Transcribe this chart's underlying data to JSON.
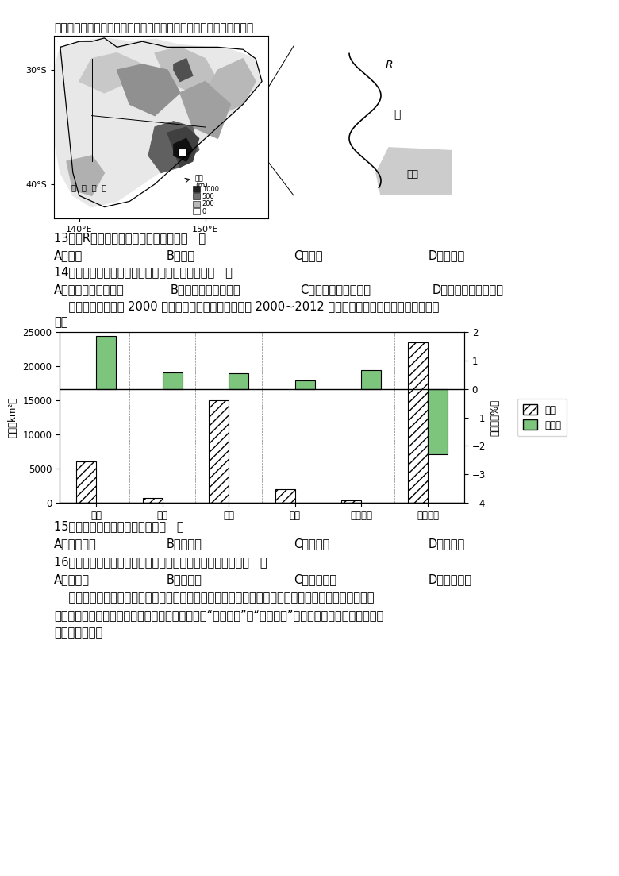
{
  "page_bg": "#ffffff",
  "top_text": "掩映在绿树红花中。图示意澳大利亚部分区域。读图完成下面小题。",
  "q13": "13．与R河终年清澈见底无关的因素是（   ）",
  "q13_options": [
    "A．水温",
    "B．流速",
    "C．盐度",
    "D．含沙量"
  ],
  "q14": "14．游泳爱好者横渡巴斯海峡最佳季节时，正値（   ）",
  "q14_options": [
    "A．我国华北小麦返青",
    "B．长江流域伏旱时期",
    "C．澳大利亚白昂变长",
    "D．巴西高原草木茂盛"
  ],
  "chart_intro": "    下图为我国某区域 2000 年主要土地利用类型的面积及 2000~2012 年的变化率示意图。据图完成下面小",
  "chart_intro2": "题。",
  "categories": [
    "耕地",
    "林地",
    "草地",
    "水域",
    "建设用地",
    "未利用地"
  ],
  "area_values": [
    6000,
    700,
    15000,
    2000,
    300,
    23500
  ],
  "change_values": [
    1.85,
    0.58,
    0.55,
    0.3,
    0.65,
    -2.3
  ],
  "area_ylim": [
    0,
    25000
  ],
  "change_ylim": [
    -4,
    2
  ],
  "area_yticks": [
    0,
    5000,
    10000,
    15000,
    20000,
    25000
  ],
  "change_yticks": [
    -4,
    -3,
    -2,
    -1,
    0,
    1,
    2
  ],
  "area_label": "面积（km²）",
  "change_label": "变化率（%）",
  "area_color": "#d8d8d8",
  "change_color": "#7dc47d",
  "hatch_area": "///",
  "legend_area": "面积",
  "legend_change": "变化率",
  "q15": "15．该区域所在的省份最可能是（   ）",
  "q15_options": [
    "A．黑龙江省",
    "B．云南省",
    "C．甘肃省",
    "D．河北省"
  ],
  "q16": "16．区域土地利用类型面积变化可能造成的主要环境问题是（   ）",
  "q16_options": [
    "A．石漠化",
    "B．沙漠化",
    "C．黑土退化",
    "D．水土流失"
  ],
  "bottom_text1": "    长江经济带既是我国综合实力最强、战略支撑作用最大的区域之一，也是一条面向国内外开放合作的",
  "bottom_text2": "重要走廊。近年来，长江经济带东西部地区之间由“移民就业”向“移业就民”的新模式转换已见成效。据此",
  "bottom_text3": "完成下面小题。"
}
